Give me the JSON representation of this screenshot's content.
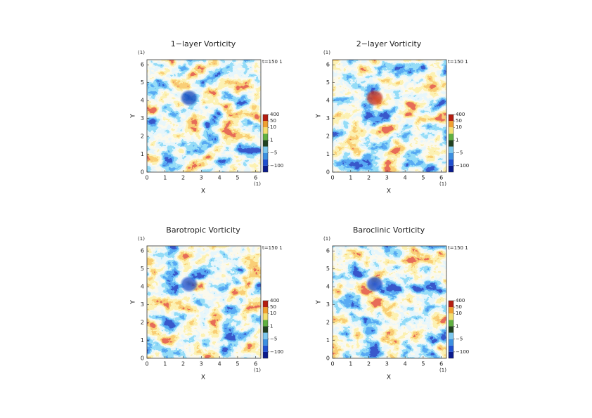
{
  "chart_data": [
    {
      "type": "heatmap",
      "title": "1−layer Vorticity",
      "xlabel": "X",
      "ylabel": "Y",
      "x_unit": "(1)",
      "y_unit": "(1)",
      "annotation": "t=150 1",
      "xlim": [
        0,
        6.283
      ],
      "ylim": [
        0,
        6.283
      ],
      "xticks": [
        0,
        1,
        2,
        3,
        4,
        5,
        6
      ],
      "yticks": [
        0,
        1,
        2,
        3,
        4,
        5,
        6
      ],
      "colorbar": {
        "levels": [
          -400,
          -100,
          -10,
          -5,
          -1,
          1,
          5,
          10,
          50,
          400
        ],
        "colors": [
          "#0a1a8c",
          "#1f4fd0",
          "#3c8fe0",
          "#7cc8ee",
          "#204020",
          "#60b040",
          "#f3e070",
          "#f0a030",
          "#b51d10"
        ],
        "ticks": [
          400,
          50,
          10,
          1,
          {
            "value": -5,
            "label": "−5"
          },
          {
            "value": -100,
            "label": "−100"
          }
        ]
      }
    },
    {
      "type": "heatmap",
      "title": "2−layer Vorticity",
      "xlabel": "X",
      "ylabel": "Y",
      "x_unit": "(1)",
      "y_unit": "(1)",
      "annotation": "t=150 1",
      "xlim": [
        0,
        6.283
      ],
      "ylim": [
        0,
        6.283
      ],
      "xticks": [
        0,
        1,
        2,
        3,
        4,
        5,
        6
      ],
      "yticks": [
        0,
        1,
        2,
        3,
        4,
        5,
        6
      ],
      "colorbar": {
        "levels": [
          -400,
          -100,
          -10,
          -5,
          -1,
          1,
          5,
          10,
          50,
          400
        ],
        "colors": [
          "#0a1a8c",
          "#1f4fd0",
          "#3c8fe0",
          "#7cc8ee",
          "#204020",
          "#60b040",
          "#f3e070",
          "#f0a030",
          "#b51d10"
        ],
        "ticks": [
          400,
          50,
          10,
          1,
          {
            "value": -5,
            "label": "−5"
          },
          {
            "value": -100,
            "label": "−100"
          }
        ]
      }
    },
    {
      "type": "heatmap",
      "title": "Barotropic Vorticity",
      "xlabel": "X",
      "ylabel": "Y",
      "x_unit": "(1)",
      "y_unit": "(1)",
      "annotation": "t=150 1",
      "xlim": [
        0,
        6.283
      ],
      "ylim": [
        0,
        6.283
      ],
      "xticks": [
        0,
        1,
        2,
        3,
        4,
        5,
        6
      ],
      "yticks": [
        0,
        1,
        2,
        3,
        4,
        5,
        6
      ],
      "colorbar": {
        "levels": [
          -400,
          -100,
          -10,
          -5,
          -1,
          1,
          5,
          10,
          50,
          400
        ],
        "colors": [
          "#0a1a8c",
          "#1f4fd0",
          "#3c8fe0",
          "#7cc8ee",
          "#204020",
          "#60b040",
          "#f3e070",
          "#f0a030",
          "#b51d10"
        ],
        "ticks": [
          400,
          50,
          10,
          1,
          {
            "value": -5,
            "label": "−5"
          },
          {
            "value": -100,
            "label": "−100"
          }
        ]
      }
    },
    {
      "type": "heatmap",
      "title": "Baroclinic Vorticity",
      "xlabel": "X",
      "ylabel": "Y",
      "x_unit": "(1)",
      "y_unit": "(1)",
      "annotation": "t=150 1",
      "xlim": [
        0,
        6.283
      ],
      "ylim": [
        0,
        6.283
      ],
      "xticks": [
        0,
        1,
        2,
        3,
        4,
        5,
        6
      ],
      "yticks": [
        0,
        1,
        2,
        3,
        4,
        5,
        6
      ],
      "colorbar": {
        "levels": [
          -400,
          -100,
          -10,
          -5,
          -1,
          1,
          5,
          10,
          50,
          400
        ],
        "colors": [
          "#0a1a8c",
          "#1f4fd0",
          "#3c8fe0",
          "#7cc8ee",
          "#204020",
          "#60b040",
          "#f3e070",
          "#f0a030",
          "#b51d10"
        ],
        "ticks": [
          400,
          50,
          10,
          1,
          {
            "value": -5,
            "label": "−5"
          },
          {
            "value": -100,
            "label": "−100"
          }
        ]
      }
    }
  ]
}
